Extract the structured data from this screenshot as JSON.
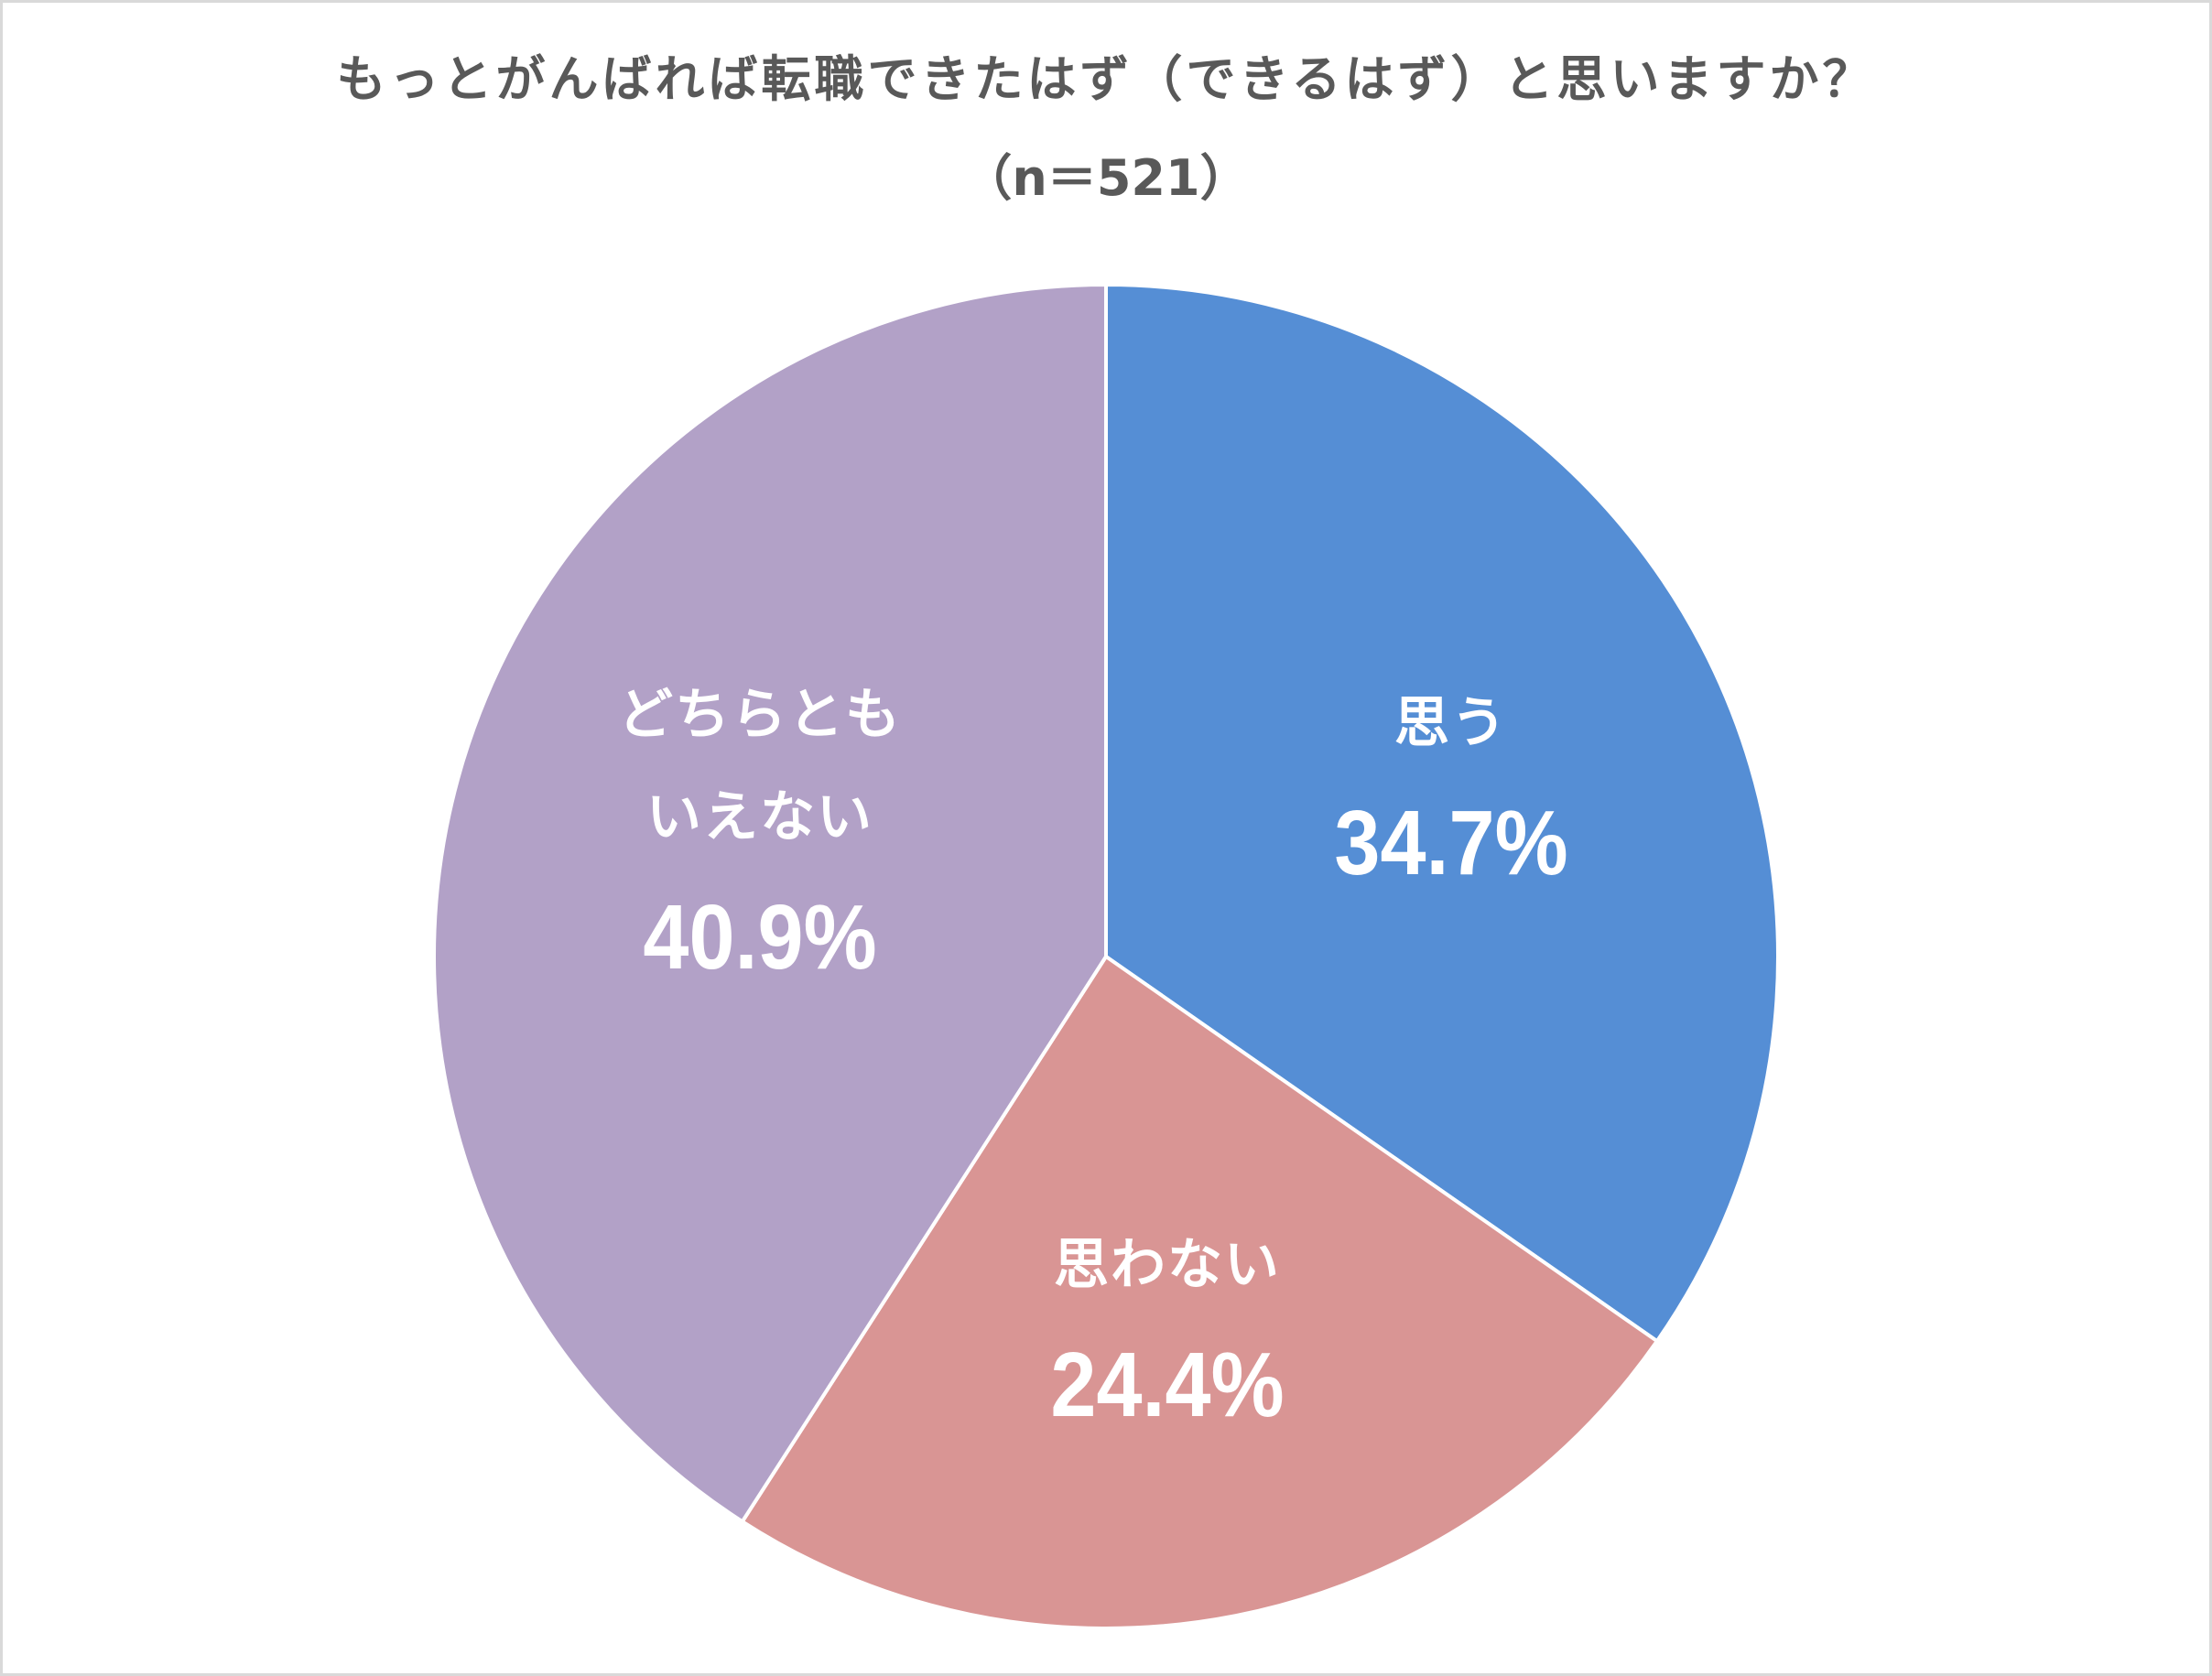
{
  "chart_data": {
    "type": "pie",
    "title": "もっとがんばれば転職できたはず（できるはず）と思いますか？",
    "subtitle": "（n＝521）",
    "categories": [
      "思う",
      "思わない",
      "どちらともいえない"
    ],
    "values": [
      34.7,
      24.4,
      40.9
    ],
    "unit": "%",
    "sample_size": 521,
    "start_angle_deg": 0,
    "direction": "clockwise",
    "colors": [
      "#558ed5",
      "#d99594",
      "#b2a1c7"
    ],
    "legend": "none (labels inside slices)",
    "slices": [
      {
        "label": "思う",
        "label_lines": [
          "思う"
        ],
        "value": 34.7,
        "display": "34.7%",
        "color": "#558ed5"
      },
      {
        "label": "思わない",
        "label_lines": [
          "思わない"
        ],
        "value": 24.4,
        "display": "24.4%",
        "color": "#d99594"
      },
      {
        "label": "どちらともいえない",
        "label_lines": [
          "どちらとも",
          "いえない"
        ],
        "value": 40.9,
        "display": "40.9%",
        "color": "#b2a1c7"
      }
    ]
  },
  "header": {
    "title": "もっとがんばれば転職できたはず（できるはず）と思いますか？",
    "subtitle": "（n＝521）"
  },
  "labels": {
    "omou": {
      "cat": "思う",
      "pct": "34.7%"
    },
    "omowanai": {
      "cat": "思わない",
      "pct": "24.4%"
    },
    "dochira": {
      "cat1": "どちらとも",
      "cat2": "いえない",
      "pct": "40.9%"
    }
  },
  "style": {
    "title_color": "#595959",
    "border_color": "#d9d9d9",
    "slice_stroke": "#ffffff"
  }
}
